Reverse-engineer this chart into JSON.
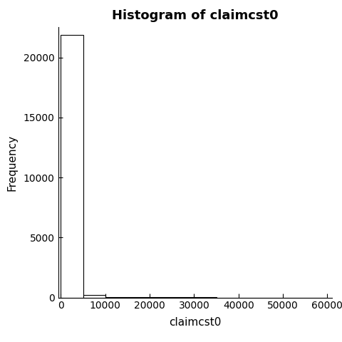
{
  "title": "Histogram of claimcst0",
  "xlabel": "claimcst0",
  "ylabel": "Frequency",
  "xlim": [
    -600,
    61000
  ],
  "ylim": [
    0,
    22500
  ],
  "xticks": [
    0,
    10000,
    20000,
    30000,
    40000,
    50000,
    60000
  ],
  "yticks": [
    0,
    5000,
    10000,
    15000,
    20000
  ],
  "xticklabels": [
    "0",
    "10000",
    "20000",
    "30000",
    "40000",
    "50000",
    "60000"
  ],
  "yticklabels": [
    "0",
    "5000",
    "10000",
    "15000",
    "20000"
  ],
  "bar_edges": [
    0,
    5000,
    10000,
    15000,
    20000,
    25000,
    30000,
    35000,
    40000,
    45000,
    50000,
    55000,
    60000
  ],
  "bar_heights": [
    21900,
    200,
    30,
    15,
    10,
    8,
    6,
    5,
    4,
    3,
    2,
    2
  ],
  "bar_color": "#ffffff",
  "bar_edgecolor": "#000000",
  "background_color": "#ffffff",
  "title_fontsize": 13,
  "label_fontsize": 11,
  "tick_fontsize": 10,
  "figsize": [
    4.8,
    4.8
  ],
  "dpi": 100
}
